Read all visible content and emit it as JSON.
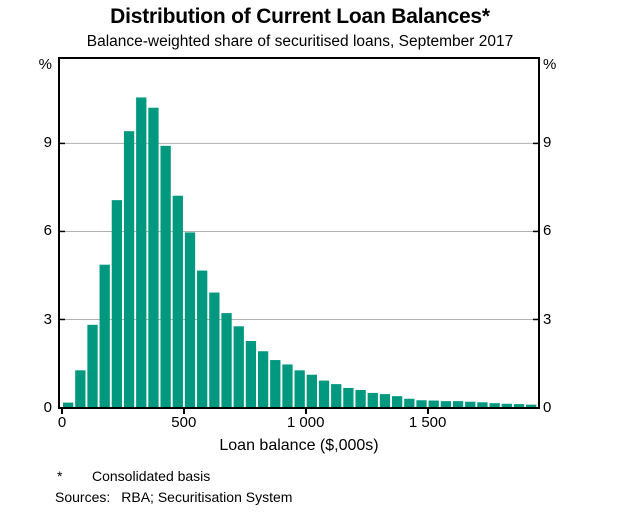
{
  "chart_data": {
    "type": "bar",
    "title": "Distribution of Current Loan Balances*",
    "subtitle": "Balance-weighted share of securitised loans, September 2017",
    "xlabel": "Loan balance ($,000s)",
    "ylabel": "%",
    "y_unit": "%",
    "bin_width_thousands": 50,
    "bin_starts": [
      0,
      50,
      100,
      150,
      200,
      250,
      300,
      350,
      400,
      450,
      500,
      550,
      600,
      650,
      700,
      750,
      800,
      850,
      900,
      950,
      1000,
      1050,
      1100,
      1150,
      1200,
      1250,
      1300,
      1350,
      1400,
      1450,
      1500,
      1550,
      1600,
      1650,
      1700,
      1750,
      1800,
      1850,
      1900
    ],
    "values": [
      0.15,
      1.25,
      2.8,
      4.85,
      7.05,
      9.4,
      10.55,
      10.2,
      8.9,
      7.2,
      5.95,
      4.65,
      3.9,
      3.2,
      2.75,
      2.25,
      1.9,
      1.6,
      1.45,
      1.25,
      1.1,
      0.9,
      0.78,
      0.65,
      0.58,
      0.48,
      0.44,
      0.37,
      0.28,
      0.23,
      0.22,
      0.2,
      0.2,
      0.18,
      0.16,
      0.13,
      0.11,
      0.1,
      0.08
    ],
    "xticks": [
      0,
      500,
      1000,
      1500
    ],
    "xtick_labels": [
      "0",
      "500",
      "1 000",
      "1 500"
    ],
    "yticks": [
      0,
      3,
      6,
      9
    ],
    "ylim": [
      0,
      11.86
    ],
    "xlim": [
      -10,
      1960
    ],
    "grid": "horizontal",
    "legend": "none",
    "bar_color": "#009980",
    "gridline_color": "#b0b0b0",
    "axis_color": "#000000"
  },
  "footer": {
    "footnote_marker": "*",
    "footnote_text": "Consolidated basis",
    "sources_label": "Sources:",
    "sources_text": "RBA; Securitisation System"
  }
}
